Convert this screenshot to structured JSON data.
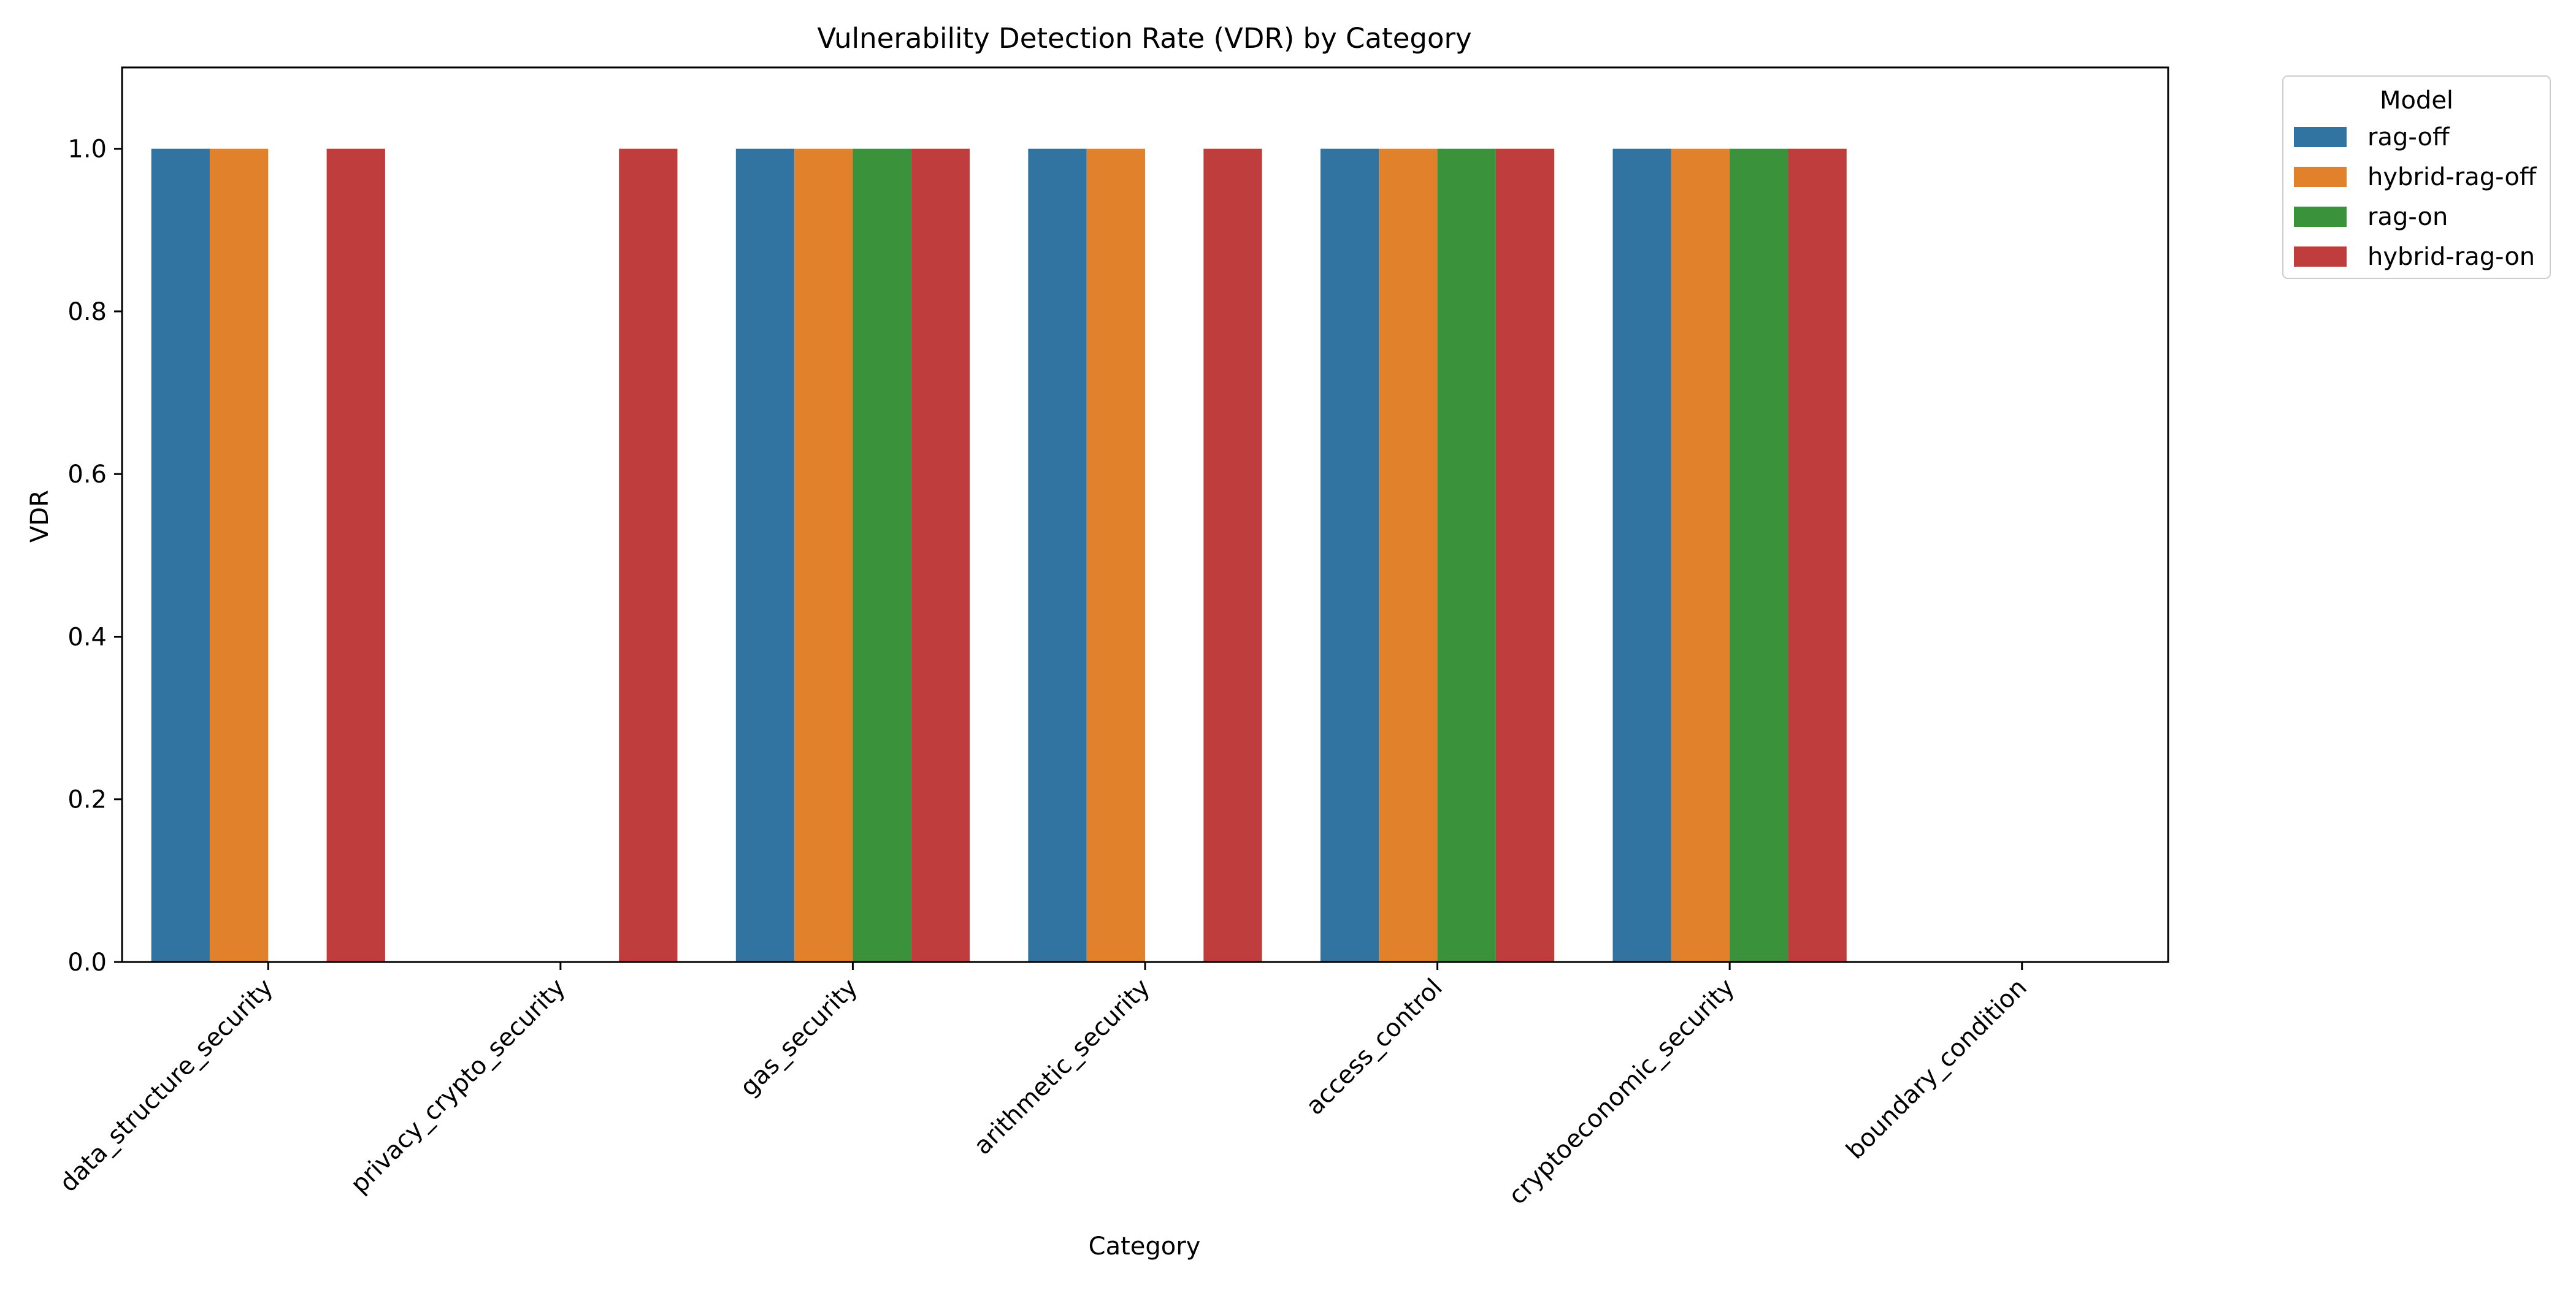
{
  "chart_data": {
    "type": "bar",
    "title": "Vulnerability Detection Rate (VDR) by Category",
    "xlabel": "Category",
    "ylabel": "VDR",
    "ylim": [
      0,
      1.1
    ],
    "yticks": [
      0.0,
      0.2,
      0.4,
      0.6,
      0.8,
      1.0
    ],
    "ytick_labels": [
      "0.0",
      "0.2",
      "0.4",
      "0.6",
      "0.8",
      "1.0"
    ],
    "grid": false,
    "legend": {
      "title": "Model",
      "placement": "outside-top-right"
    },
    "categories": [
      "data_structure_security",
      "privacy_crypto_security",
      "gas_security",
      "arithmetic_security",
      "access_control",
      "cryptoeconomic_security",
      "boundary_condition"
    ],
    "series": [
      {
        "name": "rag-off",
        "color": "#3274a1",
        "values": [
          1.0,
          0.0,
          1.0,
          1.0,
          1.0,
          1.0,
          0.0
        ]
      },
      {
        "name": "hybrid-rag-off",
        "color": "#e1812c",
        "values": [
          1.0,
          0.0,
          1.0,
          1.0,
          1.0,
          1.0,
          0.0
        ]
      },
      {
        "name": "rag-on",
        "color": "#3a923a",
        "values": [
          0.0,
          0.0,
          1.0,
          0.0,
          1.0,
          1.0,
          0.0
        ]
      },
      {
        "name": "hybrid-rag-on",
        "color": "#c03d3e",
        "values": [
          1.0,
          1.0,
          1.0,
          1.0,
          1.0,
          1.0,
          0.0
        ]
      }
    ]
  }
}
